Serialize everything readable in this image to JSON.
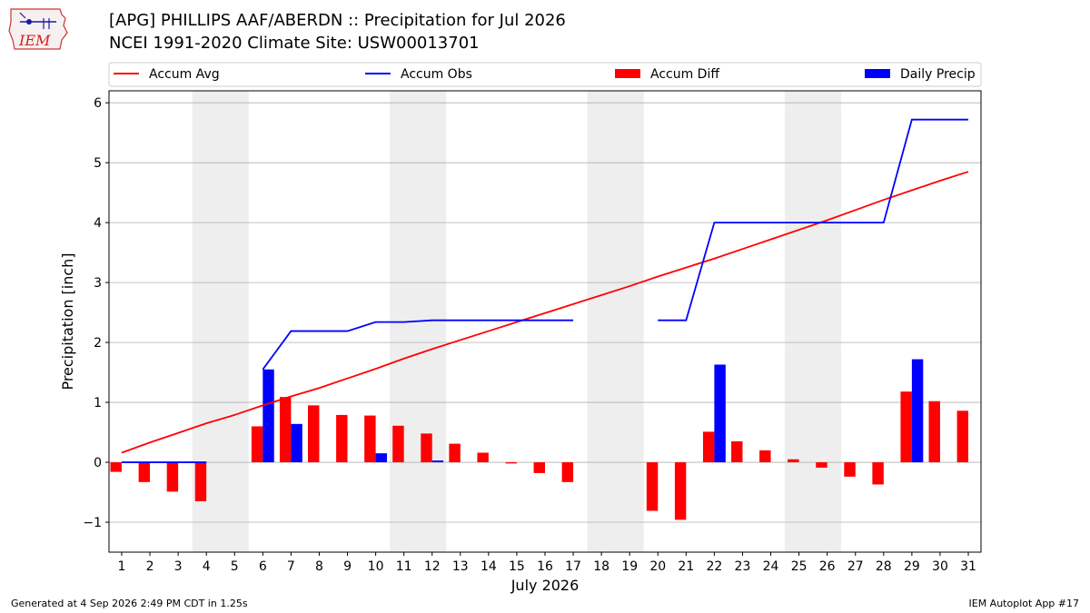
{
  "header": {
    "title_line1": "[APG] PHILLIPS AAF/ABERDN :: Precipitation for Jul 2026",
    "title_line2": "NCEI 1991-2020 Climate Site: USW00013701",
    "logo_text": "IEM"
  },
  "footer": {
    "generated": "Generated at 4 Sep 2026 2:49 PM CDT in 1.25s",
    "app": "IEM Autoplot App #17"
  },
  "chart_data": {
    "type": "bar",
    "xlabel": "July 2026",
    "ylabel": "Precipitation [inch]",
    "ylim": [
      -1.5,
      6.2
    ],
    "xlim": [
      0.55,
      31.45
    ],
    "yticks": [
      -1,
      0,
      1,
      2,
      3,
      4,
      5,
      6
    ],
    "ytick_labels": [
      "−1",
      "0",
      "1",
      "2",
      "3",
      "4",
      "5",
      "6"
    ],
    "days": [
      1,
      2,
      3,
      4,
      5,
      6,
      7,
      8,
      9,
      10,
      11,
      12,
      13,
      14,
      15,
      16,
      17,
      18,
      19,
      20,
      21,
      22,
      23,
      24,
      25,
      26,
      27,
      28,
      29,
      30,
      31
    ],
    "grid": "horizontal",
    "legend_position": "top",
    "weekend_shading": [
      [
        4,
        5
      ],
      [
        11,
        12
      ],
      [
        18,
        19
      ],
      [
        25,
        26
      ]
    ],
    "colors": {
      "accum_avg": "#ff0000",
      "accum_obs": "#0000ff",
      "accum_diff": "#ff0000",
      "daily_precip": "#0000ff",
      "shade": "#eeeeee",
      "grid": "#b0b0b0"
    },
    "legend": [
      {
        "label": "Accum Avg",
        "kind": "line",
        "color": "#ff0000"
      },
      {
        "label": "Accum Obs",
        "kind": "line",
        "color": "#0000ff"
      },
      {
        "label": "Accum Diff",
        "kind": "patch",
        "color": "#ff0000"
      },
      {
        "label": "Daily Precip",
        "kind": "patch",
        "color": "#0000ff"
      }
    ],
    "series": [
      {
        "name": "Accum Avg",
        "kind": "line",
        "values": [
          0.16,
          0.33,
          0.49,
          0.65,
          0.79,
          0.95,
          1.1,
          1.24,
          1.4,
          1.56,
          1.73,
          1.89,
          2.04,
          2.19,
          2.34,
          2.49,
          2.64,
          2.79,
          2.94,
          3.1,
          3.25,
          3.4,
          3.56,
          3.72,
          3.88,
          4.04,
          4.21,
          4.38,
          4.54,
          4.7,
          4.85
        ]
      },
      {
        "name": "Accum Obs",
        "kind": "line",
        "values": [
          0.0,
          0.0,
          0.0,
          0.0,
          null,
          1.55,
          2.19,
          2.19,
          2.19,
          2.34,
          2.34,
          2.37,
          2.37,
          2.37,
          2.37,
          2.37,
          2.37,
          null,
          null,
          2.37,
          2.37,
          4.0,
          4.0,
          4.0,
          4.0,
          4.0,
          4.0,
          4.0,
          5.72,
          5.72,
          5.72
        ]
      },
      {
        "name": "Accum Diff",
        "kind": "bar",
        "values": [
          -0.16,
          -0.33,
          -0.49,
          -0.65,
          null,
          0.6,
          1.09,
          0.95,
          0.79,
          0.78,
          0.61,
          0.48,
          0.31,
          0.16,
          -0.02,
          -0.18,
          -0.33,
          null,
          null,
          -0.81,
          -0.96,
          0.51,
          0.35,
          0.2,
          0.05,
          -0.09,
          -0.24,
          -0.37,
          1.18,
          1.02,
          0.86
        ]
      },
      {
        "name": "Daily Precip",
        "kind": "bar",
        "values": [
          0,
          0,
          0,
          0,
          null,
          1.55,
          0.64,
          0,
          0,
          0.15,
          0,
          0.03,
          0,
          0,
          0,
          0,
          0,
          null,
          null,
          0,
          0,
          1.63,
          0,
          0,
          0,
          0,
          0,
          0,
          1.72,
          0,
          0
        ]
      }
    ]
  }
}
